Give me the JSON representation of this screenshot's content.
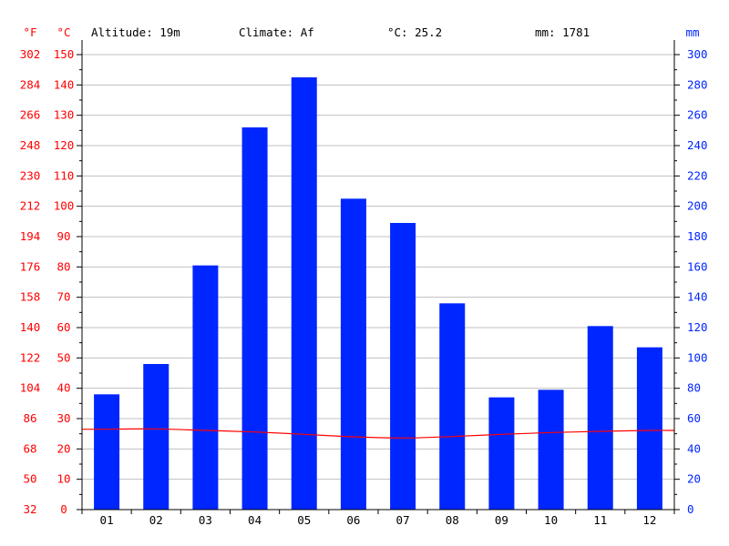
{
  "header": {
    "altitude": "Altitude: 19m",
    "climate": "Climate: Af",
    "temp": "°C: 25.2",
    "precip": "mm: 1781"
  },
  "axis_units": {
    "fahrenheit": "°F",
    "celsius": "°C",
    "precip": "mm"
  },
  "colors": {
    "bars": "#0026ff",
    "temperature_line": "#ff0000",
    "left_axis_text": "#ff0000",
    "right_axis_text": "#0026ff",
    "grid": "#c0c0c0",
    "axis": "#000000"
  },
  "chart_data": {
    "type": "bar",
    "categories": [
      "01",
      "02",
      "03",
      "04",
      "05",
      "06",
      "07",
      "08",
      "09",
      "10",
      "11",
      "12"
    ],
    "series": [
      {
        "name": "mm",
        "type": "bar",
        "axis": "right",
        "values": [
          76,
          96,
          161,
          252,
          285,
          205,
          189,
          136,
          74,
          79,
          121,
          107
        ]
      },
      {
        "name": "°C",
        "type": "line",
        "axis": "left",
        "values": [
          26.5,
          26.6,
          26.1,
          25.6,
          24.8,
          24.0,
          23.6,
          24.1,
          24.8,
          25.4,
          25.8,
          26.1
        ]
      }
    ],
    "y_left_celsius": {
      "range": [
        0,
        150
      ],
      "ticks": [
        0,
        10,
        20,
        30,
        40,
        50,
        60,
        70,
        80,
        90,
        100,
        110,
        120,
        130,
        140,
        150
      ]
    },
    "y_left_fahrenheit": {
      "range": [
        32,
        302
      ],
      "ticks": [
        32,
        50,
        68,
        86,
        104,
        122,
        140,
        158,
        176,
        194,
        212,
        230,
        248,
        266,
        284,
        302
      ]
    },
    "y_right_precip": {
      "range": [
        0,
        300
      ],
      "ticks": [
        0,
        20,
        40,
        60,
        80,
        100,
        120,
        140,
        160,
        180,
        200,
        220,
        240,
        260,
        280,
        300
      ]
    },
    "grid": true
  }
}
